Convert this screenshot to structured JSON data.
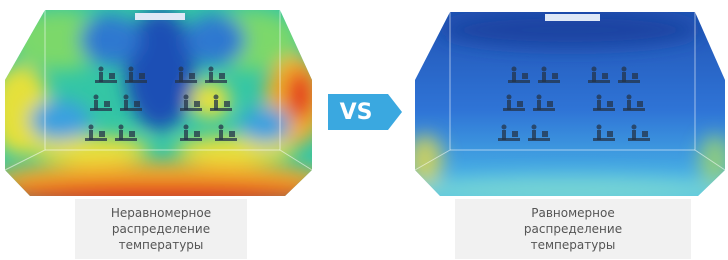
{
  "left": {
    "caption": [
      "Неравномерное",
      "распределение",
      "температуры"
    ]
  },
  "vs_badge": "VS",
  "right": {
    "caption": [
      "Равномерное",
      "распределение",
      "температуры"
    ]
  }
}
